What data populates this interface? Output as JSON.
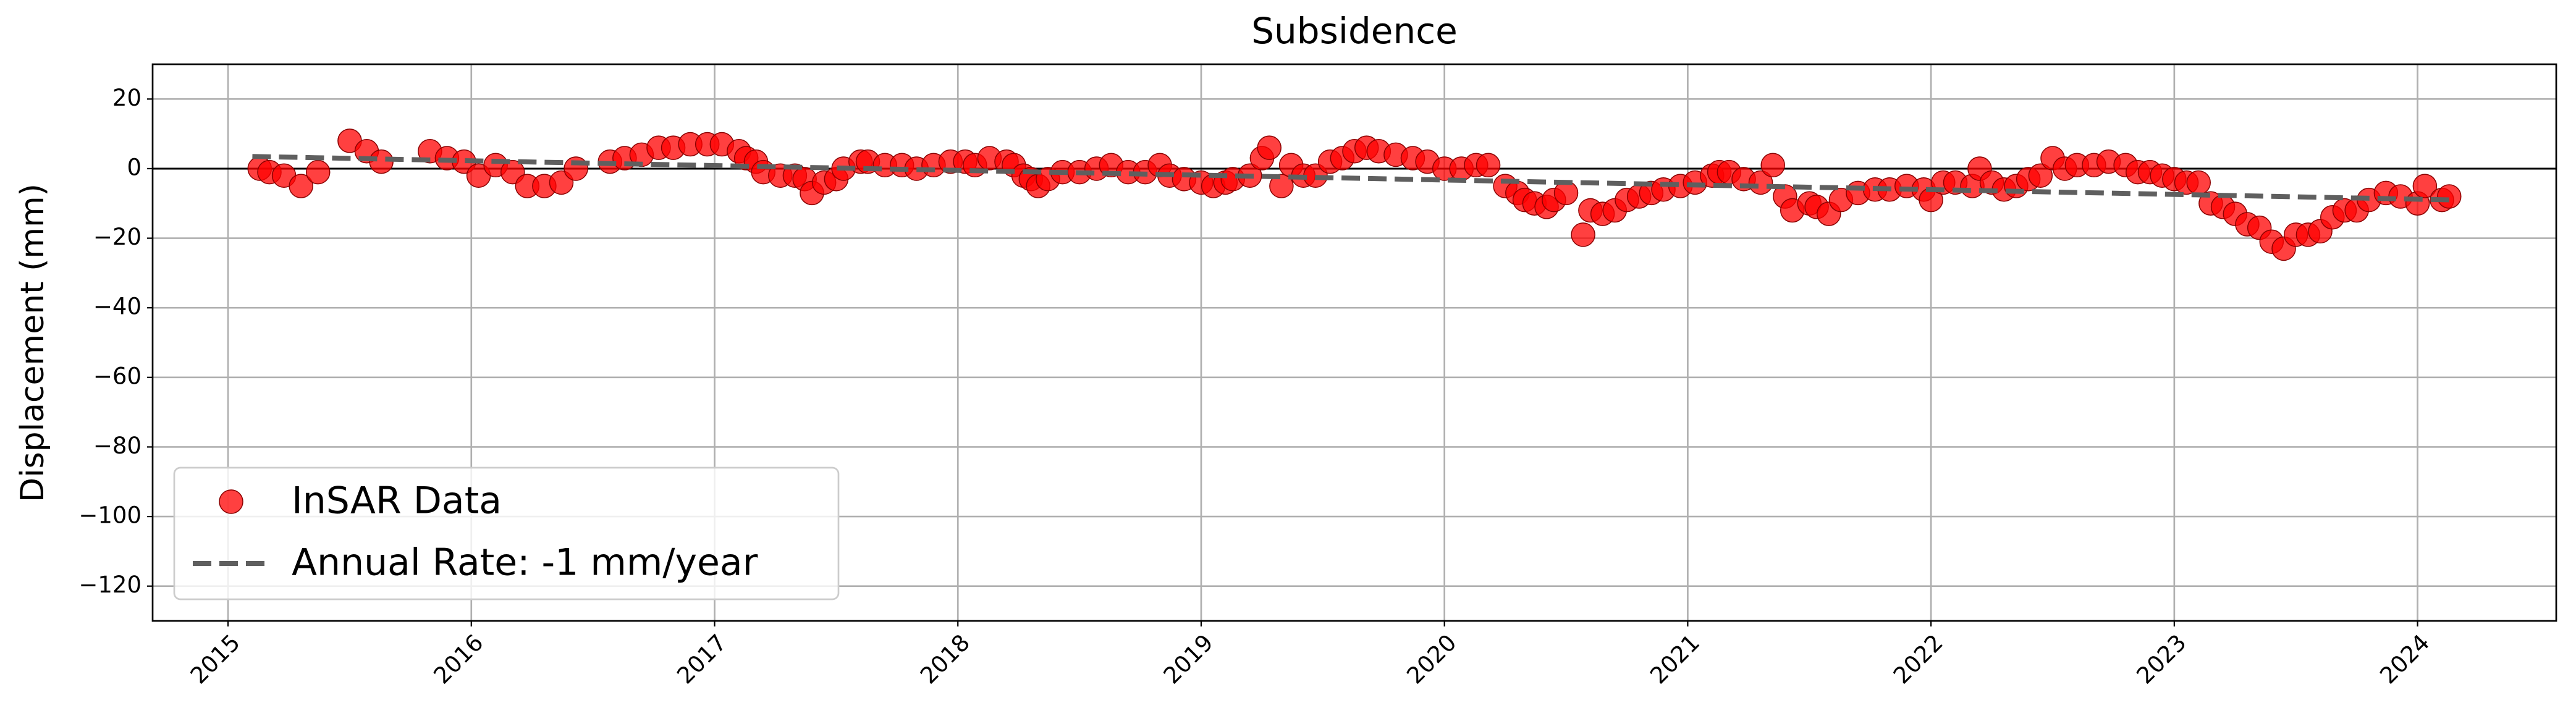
{
  "chart_data": {
    "type": "scatter",
    "title": "Subsidence",
    "ylabel": "Displacement (mm)",
    "xlim": [
      2014.69,
      2024.57
    ],
    "ylim": [
      -130,
      30
    ],
    "xticks": [
      2015,
      2016,
      2017,
      2018,
      2019,
      2020,
      2021,
      2022,
      2023,
      2024
    ],
    "yticks": [
      20,
      0,
      {
        "value": -20,
        "label": "−20"
      },
      {
        "value": -40,
        "label": "−40"
      },
      {
        "value": -60,
        "label": "−60"
      },
      {
        "value": -80,
        "label": "−80"
      },
      {
        "value": -100,
        "label": "−100"
      },
      {
        "value": -120,
        "label": "−120"
      }
    ],
    "grid": true,
    "hline": 0,
    "legend": "lower left",
    "series": [
      {
        "name": "InSAR Data",
        "type": "scatter",
        "color": "#ff0000",
        "x": [
          2015.13,
          2015.17,
          2015.23,
          2015.3,
          2015.37,
          2015.5,
          2015.57,
          2015.63,
          2015.83,
          2015.9,
          2015.97,
          2016.03,
          2016.1,
          2016.17,
          2016.23,
          2016.3,
          2016.37,
          2016.43,
          2016.57,
          2016.63,
          2016.7,
          2016.77,
          2016.83,
          2016.9,
          2016.97,
          2017.03,
          2017.1,
          2017.13,
          2017.17,
          2017.2,
          2017.27,
          2017.33,
          2017.37,
          2017.4,
          2017.45,
          2017.5,
          2017.53,
          2017.6,
          2017.63,
          2017.7,
          2017.77,
          2017.83,
          2017.9,
          2017.97,
          2018.03,
          2018.07,
          2018.13,
          2018.2,
          2018.23,
          2018.27,
          2018.3,
          2018.33,
          2018.37,
          2018.43,
          2018.5,
          2018.57,
          2018.63,
          2018.7,
          2018.77,
          2018.83,
          2018.87,
          2018.93,
          2019.0,
          2019.05,
          2019.1,
          2019.13,
          2019.2,
          2019.25,
          2019.28,
          2019.33,
          2019.37,
          2019.42,
          2019.47,
          2019.53,
          2019.58,
          2019.63,
          2019.68,
          2019.73,
          2019.8,
          2019.87,
          2019.93,
          2020.0,
          2020.07,
          2020.13,
          2020.18,
          2020.25,
          2020.3,
          2020.33,
          2020.37,
          2020.42,
          2020.45,
          2020.5,
          2020.57,
          2020.6,
          2020.65,
          2020.7,
          2020.75,
          2020.8,
          2020.85,
          2020.9,
          2020.97,
          2021.03,
          2021.1,
          2021.13,
          2021.17,
          2021.23,
          2021.3,
          2021.35,
          2021.4,
          2021.43,
          2021.5,
          2021.53,
          2021.58,
          2021.63,
          2021.7,
          2021.77,
          2021.83,
          2021.9,
          2021.97,
          2022.0,
          2022.05,
          2022.1,
          2022.17,
          2022.2,
          2022.25,
          2022.3,
          2022.35,
          2022.4,
          2022.45,
          2022.5,
          2022.55,
          2022.6,
          2022.67,
          2022.73,
          2022.8,
          2022.85,
          2022.9,
          2022.95,
          2023.0,
          2023.05,
          2023.1,
          2023.15,
          2023.2,
          2023.25,
          2023.3,
          2023.35,
          2023.4,
          2023.45,
          2023.5,
          2023.55,
          2023.6,
          2023.65,
          2023.7,
          2023.75,
          2023.8,
          2023.87,
          2023.93,
          2024.0,
          2024.03,
          2024.1,
          2024.13
        ],
        "values": [
          0,
          -1,
          -2,
          -5,
          -1,
          8,
          5,
          2,
          5,
          3,
          2,
          -2,
          1,
          -1,
          -5,
          -5,
          -4,
          0,
          2,
          3,
          4,
          6,
          6,
          7,
          7,
          7,
          5,
          3,
          2,
          -1,
          -2,
          -2,
          -3,
          -7,
          -4,
          -3,
          0,
          2,
          2,
          1,
          1,
          0,
          1,
          2,
          2,
          1,
          3,
          2,
          1,
          -2,
          -3,
          -5,
          -3,
          -1,
          -1,
          0,
          1,
          -1,
          -1,
          1,
          -2,
          -3,
          -4,
          -5,
          -4,
          -3,
          -2,
          3,
          6,
          -5,
          1,
          -2,
          -2,
          2,
          3,
          5,
          6,
          5,
          4,
          3,
          2,
          0,
          0,
          1,
          1,
          -5,
          -7,
          -9,
          -10,
          -11,
          -9,
          -7,
          -19,
          -12,
          -13,
          -12,
          -9,
          -8,
          -7,
          -6,
          -5,
          -4,
          -2,
          -1,
          -1,
          -3,
          -4,
          1,
          -8,
          -12,
          -10,
          -11,
          -13,
          -9,
          -7,
          -6,
          -6,
          -5,
          -6,
          -9,
          -4,
          -4,
          -5,
          0,
          -4,
          -6,
          -5,
          -3,
          -2,
          3,
          0,
          1,
          1,
          2,
          1,
          -1,
          -1,
          -2,
          -3,
          -4,
          -4,
          -10,
          -11,
          -13,
          -16,
          -17,
          -21,
          -23,
          -19,
          -19,
          -18,
          -14,
          -12,
          -12,
          -9,
          -7,
          -8,
          -10,
          -5,
          -9,
          -8
        ]
      },
      {
        "name": "Annual Rate: -1 mm/year",
        "type": "line",
        "color": "#5f5f5f",
        "dashed": true,
        "x": [
          2015.1,
          2024.15
        ],
        "values": [
          3.5,
          -9
        ]
      }
    ]
  }
}
